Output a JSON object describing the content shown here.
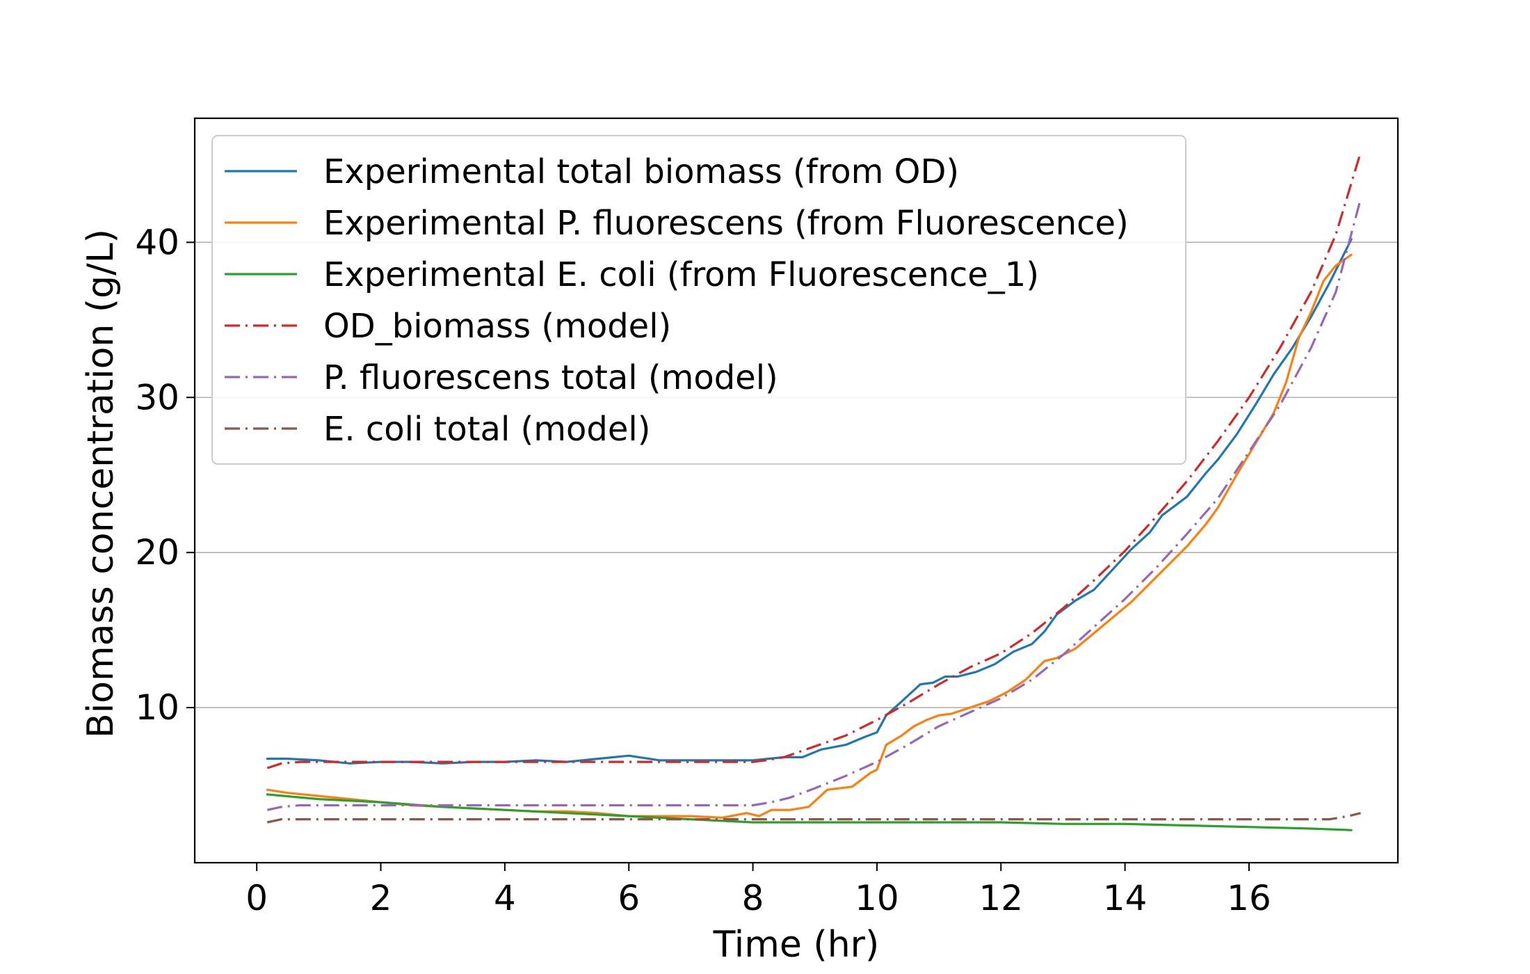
{
  "chart_data": {
    "type": "line",
    "title": "",
    "xlabel": "Time (hr)",
    "ylabel": "Biomass concentration (g/L)",
    "xlim": [
      -1.0,
      18.4
    ],
    "ylim": [
      0.0,
      48.0
    ],
    "xticks": [
      0,
      2,
      4,
      6,
      8,
      10,
      12,
      14,
      16
    ],
    "yticks": [
      10,
      20,
      30,
      40
    ],
    "grid": "horizontal",
    "legend_position": "upper-left",
    "series": [
      {
        "name": "Experimental total biomass (from OD)",
        "color": "#1f77b4",
        "style": "solid",
        "x": [
          0.17,
          0.5,
          1.0,
          1.5,
          2.0,
          2.5,
          3.0,
          3.5,
          4.0,
          4.5,
          5.0,
          5.5,
          6.0,
          6.5,
          7.0,
          7.5,
          8.0,
          8.5,
          8.8,
          9.1,
          9.5,
          9.8,
          10.0,
          10.15,
          10.4,
          10.7,
          10.9,
          11.1,
          11.3,
          11.6,
          11.9,
          12.2,
          12.5,
          12.7,
          12.9,
          13.2,
          13.5,
          13.8,
          14.1,
          14.4,
          14.6,
          14.8,
          15.0,
          15.3,
          15.5,
          15.8,
          16.1,
          16.4,
          16.7,
          17.0,
          17.3,
          17.65
        ],
        "y": [
          6.7,
          6.7,
          6.6,
          6.4,
          6.5,
          6.5,
          6.4,
          6.5,
          6.5,
          6.6,
          6.5,
          6.7,
          6.9,
          6.6,
          6.6,
          6.6,
          6.6,
          6.8,
          6.8,
          7.3,
          7.6,
          8.1,
          8.4,
          9.5,
          10.4,
          11.5,
          11.6,
          12.0,
          12.0,
          12.3,
          12.8,
          13.6,
          14.1,
          14.9,
          16.0,
          16.9,
          17.6,
          18.9,
          20.2,
          21.3,
          22.4,
          23.0,
          23.6,
          25.1,
          26.0,
          27.6,
          29.5,
          31.5,
          33.2,
          35.2,
          37.4,
          40.2
        ]
      },
      {
        "name": "Experimental P. fluorescens (from Fluorescence)",
        "color": "#ff7f0e",
        "style": "solid",
        "x": [
          0.17,
          0.5,
          1.0,
          1.5,
          2.0,
          2.5,
          3.0,
          3.5,
          4.0,
          4.5,
          5.0,
          5.5,
          6.0,
          6.5,
          7.0,
          7.5,
          7.9,
          8.1,
          8.3,
          8.6,
          8.9,
          9.2,
          9.6,
          9.9,
          10.0,
          10.15,
          10.4,
          10.6,
          10.8,
          11.0,
          11.2,
          11.5,
          11.8,
          12.1,
          12.4,
          12.7,
          12.9,
          13.2,
          13.5,
          13.8,
          14.1,
          14.4,
          14.7,
          15.0,
          15.3,
          15.5,
          15.8,
          16.1,
          16.4,
          16.6,
          16.8,
          17.0,
          17.2,
          17.4,
          17.65
        ],
        "y": [
          4.7,
          4.5,
          4.3,
          4.1,
          3.9,
          3.7,
          3.6,
          3.5,
          3.4,
          3.3,
          3.3,
          3.2,
          3.0,
          3.0,
          3.0,
          2.9,
          3.2,
          3.0,
          3.4,
          3.4,
          3.6,
          4.7,
          4.9,
          5.8,
          6.0,
          7.6,
          8.2,
          8.8,
          9.2,
          9.5,
          9.6,
          10.0,
          10.4,
          11.0,
          11.8,
          13.0,
          13.2,
          13.8,
          14.8,
          15.8,
          16.8,
          18.0,
          19.2,
          20.4,
          21.8,
          22.9,
          25.0,
          27.0,
          29.0,
          31.0,
          33.8,
          35.5,
          37.5,
          38.5,
          39.2
        ]
      },
      {
        "name": "Experimental E. coli (from Fluorescence_1)",
        "color": "#2ca02c",
        "style": "solid",
        "x": [
          0.17,
          1.0,
          2.0,
          3.0,
          4.0,
          5.0,
          6.0,
          7.0,
          8.0,
          9.0,
          10.0,
          11.0,
          12.0,
          13.0,
          14.0,
          15.0,
          16.0,
          17.0,
          17.65
        ],
        "y": [
          4.4,
          4.1,
          3.9,
          3.6,
          3.4,
          3.2,
          3.0,
          2.8,
          2.6,
          2.6,
          2.6,
          2.6,
          2.6,
          2.5,
          2.5,
          2.4,
          2.3,
          2.2,
          2.1
        ]
      },
      {
        "name": "OD_biomass (model)",
        "color": "#d62728",
        "style": "dashdot",
        "x": [
          0.17,
          0.4,
          0.7,
          1.0,
          2.0,
          3.0,
          4.0,
          5.0,
          6.0,
          7.0,
          8.0,
          8.2,
          8.5,
          9.0,
          9.5,
          10.0,
          10.5,
          11.0,
          11.5,
          12.0,
          12.5,
          13.0,
          13.5,
          14.0,
          14.5,
          15.0,
          15.5,
          16.0,
          16.5,
          17.0,
          17.4,
          17.8
        ],
        "y": [
          6.1,
          6.4,
          6.5,
          6.5,
          6.5,
          6.5,
          6.5,
          6.5,
          6.5,
          6.5,
          6.5,
          6.6,
          6.8,
          7.5,
          8.2,
          9.2,
          10.3,
          11.5,
          12.6,
          13.5,
          14.8,
          16.4,
          18.2,
          20.1,
          22.3,
          24.6,
          27.2,
          30.0,
          33.2,
          36.8,
          40.5,
          45.8
        ]
      },
      {
        "name": "P. fluorescens total (model)",
        "color": "#9467bd",
        "style": "dashdot",
        "x": [
          0.17,
          0.4,
          0.7,
          1.0,
          2.0,
          3.0,
          4.0,
          5.0,
          6.0,
          7.0,
          8.0,
          8.3,
          8.6,
          9.0,
          9.5,
          10.0,
          10.5,
          11.0,
          11.5,
          12.0,
          12.5,
          13.0,
          13.5,
          14.0,
          14.5,
          15.0,
          15.5,
          16.0,
          16.5,
          17.0,
          17.4,
          17.8
        ],
        "y": [
          3.4,
          3.6,
          3.7,
          3.7,
          3.7,
          3.7,
          3.7,
          3.7,
          3.7,
          3.7,
          3.7,
          3.9,
          4.2,
          4.8,
          5.6,
          6.5,
          7.6,
          8.8,
          9.7,
          10.6,
          11.8,
          13.4,
          15.2,
          17.0,
          19.0,
          21.2,
          23.5,
          26.5,
          29.5,
          33.2,
          36.8,
          42.8
        ]
      },
      {
        "name": "E. coli total (model)",
        "color": "#8c564b",
        "style": "dashdot",
        "x": [
          0.17,
          0.4,
          0.7,
          1.0,
          4.0,
          8.0,
          12.0,
          16.0,
          17.3,
          17.6,
          17.8
        ],
        "y": [
          2.6,
          2.8,
          2.8,
          2.8,
          2.8,
          2.8,
          2.8,
          2.8,
          2.8,
          3.0,
          3.2
        ]
      }
    ]
  }
}
